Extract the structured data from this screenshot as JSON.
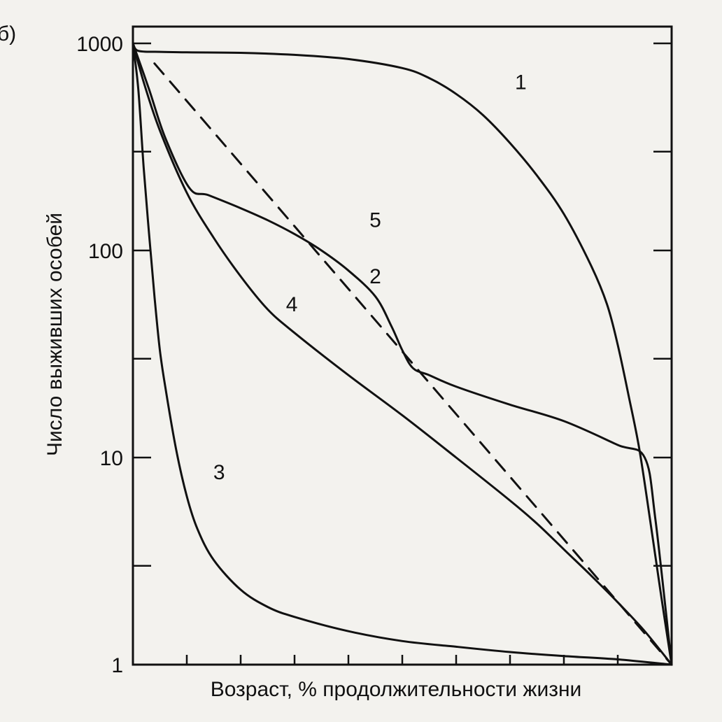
{
  "panel_label": "б)",
  "chart_data": {
    "type": "line",
    "title": "",
    "xlabel": "Возраст, % продолжительности жизни",
    "ylabel": "Число выживших особей",
    "y_scale": "log",
    "ylim": [
      1,
      1000
    ],
    "xlim": [
      0,
      100
    ],
    "x_ticks": [
      0,
      10,
      20,
      30,
      40,
      50,
      60,
      70,
      80,
      90,
      100
    ],
    "y_ticks": [
      1,
      10,
      100,
      1000
    ],
    "y_tick_labels": [
      "1",
      "10",
      "100",
      "1000"
    ],
    "y_minor_ticks": [
      3,
      30,
      300
    ],
    "grid": false,
    "legend": "none",
    "series": [
      {
        "name": "1",
        "style": "solid",
        "x": [
          0,
          1,
          5,
          10,
          20,
          30,
          40,
          50,
          55,
          60,
          65,
          70,
          75,
          80,
          85,
          88,
          90,
          92,
          94,
          96,
          98,
          100
        ],
        "y": [
          1000,
          920,
          910,
          905,
          900,
          880,
          840,
          760,
          680,
          570,
          450,
          330,
          230,
          150,
          85,
          55,
          35,
          20,
          11,
          5,
          2.2,
          1
        ]
      },
      {
        "name": "2",
        "style": "dashed",
        "x": [
          4,
          100
        ],
        "y": [
          800,
          1
        ]
      },
      {
        "name": "3",
        "style": "solid",
        "x": [
          0,
          1,
          2,
          3,
          4,
          5,
          6,
          8,
          10,
          12,
          15,
          20,
          25,
          30,
          40,
          50,
          60,
          70,
          80,
          90,
          100
        ],
        "y": [
          1000,
          600,
          250,
          120,
          60,
          33,
          22,
          11,
          6.5,
          4.5,
          3.2,
          2.3,
          1.9,
          1.7,
          1.45,
          1.3,
          1.22,
          1.15,
          1.1,
          1.06,
          1
        ]
      },
      {
        "name": "4",
        "style": "solid",
        "x": [
          0,
          2,
          5,
          10,
          15,
          20,
          25,
          30,
          40,
          50,
          60,
          70,
          75,
          80,
          85,
          90,
          95,
          100
        ],
        "y": [
          1000,
          650,
          380,
          190,
          115,
          75,
          52,
          40,
          25,
          16,
          10,
          6.2,
          4.8,
          3.6,
          2.7,
          2,
          1.45,
          1
        ]
      },
      {
        "name": "5",
        "style": "solid",
        "x": [
          0,
          3,
          6,
          10.5,
          14,
          20,
          25,
          30,
          35,
          40,
          45,
          48,
          50,
          52,
          55,
          60,
          70,
          80,
          90,
          95,
          97,
          100
        ],
        "y": [
          1000,
          600,
          350,
          200,
          185,
          160,
          140,
          120,
          100,
          80,
          60,
          43,
          33,
          27,
          25,
          22,
          18,
          15,
          11.5,
          10,
          5,
          1
        ]
      }
    ],
    "curve_labels": [
      {
        "text": "1",
        "x": 72,
        "y": 650
      },
      {
        "text": "2",
        "x": 45,
        "y": 75
      },
      {
        "text": "3",
        "x": 16,
        "y": 8.5
      },
      {
        "text": "4",
        "x": 29.5,
        "y": 55
      },
      {
        "text": "5",
        "x": 45,
        "y": 140
      }
    ]
  }
}
